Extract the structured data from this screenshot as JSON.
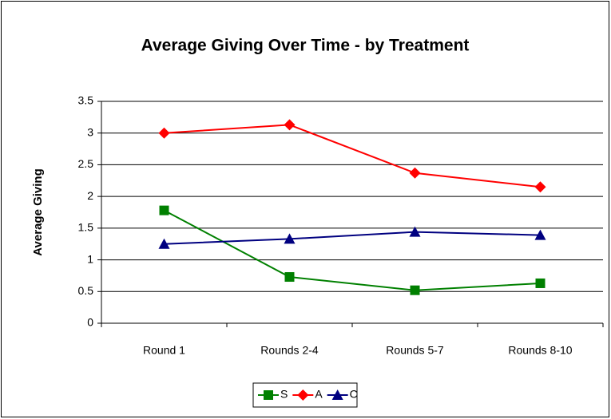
{
  "chart_data": {
    "type": "line",
    "title": "Average Giving Over Time - by Treatment",
    "y_label": "Average Giving",
    "categories": [
      "Round 1",
      "Rounds 2-4",
      "Rounds 5-7",
      "Rounds 8-10"
    ],
    "series": [
      {
        "name": "S",
        "color": "#008000",
        "marker": "square",
        "values": [
          1.78,
          0.73,
          0.52,
          0.63
        ]
      },
      {
        "name": "A",
        "color": "#ff0000",
        "marker": "diamond",
        "values": [
          3.0,
          3.13,
          2.37,
          2.15
        ]
      },
      {
        "name": "C",
        "color": "#000080",
        "marker": "triangle",
        "values": [
          1.25,
          1.33,
          1.44,
          1.39
        ]
      }
    ],
    "ylim": [
      0,
      3.5
    ],
    "yticks": [
      0,
      0.5,
      1,
      1.5,
      2,
      2.5,
      3,
      3.5
    ],
    "grid": true,
    "legend": "bottom"
  }
}
